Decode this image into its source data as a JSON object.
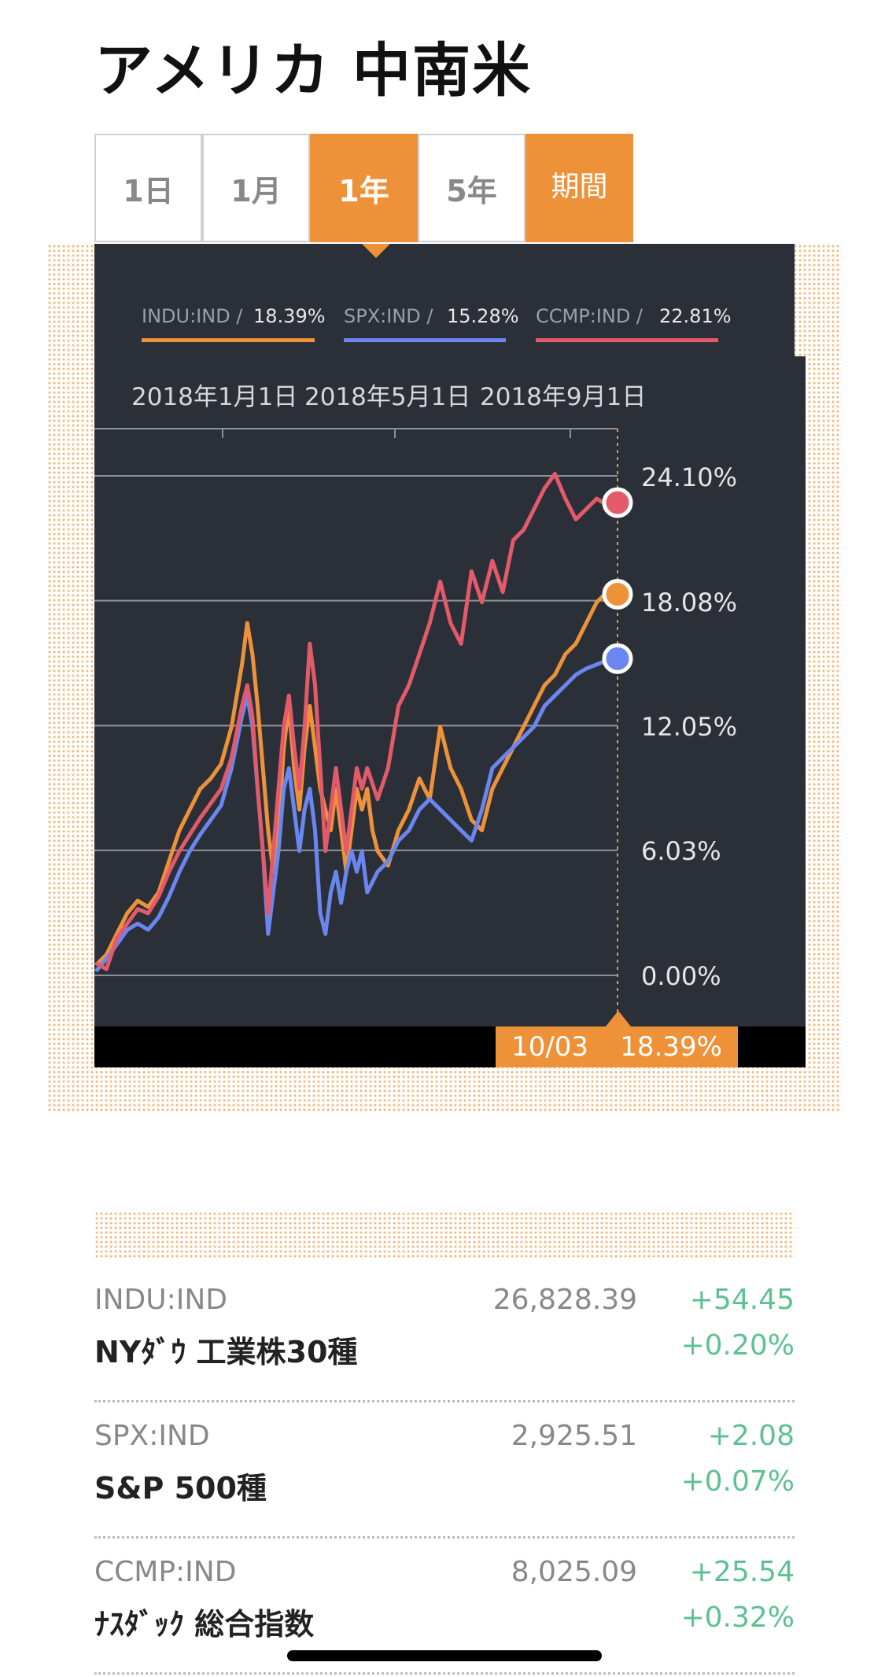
{
  "header": {
    "title": "アメリカ 中南米"
  },
  "tabs": [
    {
      "label": "1日",
      "active": false
    },
    {
      "label": "1月",
      "active": false
    },
    {
      "label": "1年",
      "active": true
    },
    {
      "label": "5年",
      "active": false
    },
    {
      "label": "期間",
      "active": false
    }
  ],
  "legend": [
    {
      "code": "INDU:IND /",
      "value": "18.39%",
      "color": "#ee923a"
    },
    {
      "code": "SPX:IND /",
      "value": "15.28%",
      "color": "#6b86f0"
    },
    {
      "code": "CCMP:IND /",
      "value": "22.81%",
      "color": "#e35a6a"
    }
  ],
  "chart_data": {
    "type": "line",
    "x_tick_labels": [
      "2018年1月1日",
      "2018年5月1日",
      "2018年9月1日"
    ],
    "y_tick_labels": [
      "24.10%",
      "18.08%",
      "12.05%",
      "6.03%",
      "0.00%"
    ],
    "y_ticks": [
      24.1,
      18.08,
      12.05,
      6.03,
      0
    ],
    "ylim": [
      -0.4,
      26.5
    ],
    "x_range": [
      0,
      100
    ],
    "grid": true,
    "series": [
      {
        "name": "INDU:IND",
        "color": "#ee923a",
        "values": [
          [
            0,
            0.5
          ],
          [
            2,
            1
          ],
          [
            4,
            2
          ],
          [
            6,
            3
          ],
          [
            8,
            3.6
          ],
          [
            10,
            3.3
          ],
          [
            12,
            4
          ],
          [
            14,
            5.5
          ],
          [
            16,
            7
          ],
          [
            18,
            8
          ],
          [
            20,
            9
          ],
          [
            22,
            9.5
          ],
          [
            24,
            10.2
          ],
          [
            26,
            12
          ],
          [
            28,
            15
          ],
          [
            29,
            17
          ],
          [
            30,
            15.5
          ],
          [
            31,
            13
          ],
          [
            32,
            10
          ],
          [
            33,
            7
          ],
          [
            34,
            5
          ],
          [
            35,
            7
          ],
          [
            36,
            11
          ],
          [
            37,
            13
          ],
          [
            38,
            10
          ],
          [
            39,
            8
          ],
          [
            40,
            11
          ],
          [
            41,
            13
          ],
          [
            42,
            11
          ],
          [
            43,
            9
          ],
          [
            44,
            8
          ],
          [
            45,
            7
          ],
          [
            46,
            9
          ],
          [
            47,
            7
          ],
          [
            48,
            5
          ],
          [
            49,
            7
          ],
          [
            50,
            9
          ],
          [
            51,
            8
          ],
          [
            52,
            9
          ],
          [
            53,
            7
          ],
          [
            54,
            6
          ],
          [
            56,
            5.3
          ],
          [
            58,
            7
          ],
          [
            60,
            8
          ],
          [
            62,
            9.5
          ],
          [
            64,
            8.5
          ],
          [
            66,
            12
          ],
          [
            68,
            10
          ],
          [
            70,
            9
          ],
          [
            72,
            7.5
          ],
          [
            74,
            7
          ],
          [
            76,
            9
          ],
          [
            78,
            10
          ],
          [
            80,
            11
          ],
          [
            82,
            12
          ],
          [
            84,
            13
          ],
          [
            86,
            14
          ],
          [
            88,
            14.5
          ],
          [
            90,
            15.5
          ],
          [
            92,
            16
          ],
          [
            94,
            17
          ],
          [
            96,
            18
          ],
          [
            98,
            18.5
          ],
          [
            100,
            18.39
          ]
        ]
      },
      {
        "name": "SPX:IND",
        "color": "#6b86f0",
        "values": [
          [
            0,
            0.2
          ],
          [
            2,
            0.8
          ],
          [
            4,
            1.5
          ],
          [
            6,
            2.2
          ],
          [
            8,
            2.5
          ],
          [
            10,
            2.2
          ],
          [
            12,
            2.8
          ],
          [
            14,
            3.8
          ],
          [
            16,
            5
          ],
          [
            18,
            6
          ],
          [
            20,
            6.8
          ],
          [
            22,
            7.5
          ],
          [
            24,
            8.2
          ],
          [
            26,
            10
          ],
          [
            28,
            12.5
          ],
          [
            29,
            13.5
          ],
          [
            30,
            12
          ],
          [
            31,
            9
          ],
          [
            32,
            6
          ],
          [
            33,
            2
          ],
          [
            34,
            4
          ],
          [
            35,
            6
          ],
          [
            36,
            9
          ],
          [
            37,
            10
          ],
          [
            38,
            8
          ],
          [
            39,
            6
          ],
          [
            40,
            8
          ],
          [
            41,
            9
          ],
          [
            42,
            7
          ],
          [
            43,
            3
          ],
          [
            44,
            2
          ],
          [
            45,
            4
          ],
          [
            46,
            5
          ],
          [
            47,
            3.5
          ],
          [
            48,
            5
          ],
          [
            49,
            6
          ],
          [
            50,
            5
          ],
          [
            51,
            6
          ],
          [
            52,
            4
          ],
          [
            54,
            5
          ],
          [
            56,
            5.5
          ],
          [
            58,
            6.5
          ],
          [
            60,
            7
          ],
          [
            62,
            8
          ],
          [
            64,
            8.5
          ],
          [
            66,
            8
          ],
          [
            68,
            7.5
          ],
          [
            70,
            7
          ],
          [
            72,
            6.5
          ],
          [
            74,
            8
          ],
          [
            76,
            10
          ],
          [
            78,
            10.5
          ],
          [
            80,
            11
          ],
          [
            82,
            11.5
          ],
          [
            84,
            12
          ],
          [
            86,
            13
          ],
          [
            88,
            13.5
          ],
          [
            90,
            14
          ],
          [
            92,
            14.5
          ],
          [
            94,
            14.8
          ],
          [
            96,
            15
          ],
          [
            98,
            15.2
          ],
          [
            100,
            15.28
          ]
        ]
      },
      {
        "name": "CCMP:IND",
        "color": "#e35a6a",
        "values": [
          [
            0,
            0.6
          ],
          [
            2,
            0.3
          ],
          [
            4,
            1.8
          ],
          [
            6,
            2.5
          ],
          [
            8,
            3.2
          ],
          [
            10,
            3
          ],
          [
            12,
            3.8
          ],
          [
            14,
            5
          ],
          [
            16,
            6
          ],
          [
            18,
            6.8
          ],
          [
            20,
            7.6
          ],
          [
            22,
            8.3
          ],
          [
            24,
            9
          ],
          [
            26,
            10.5
          ],
          [
            28,
            13
          ],
          [
            29,
            14
          ],
          [
            30,
            12.5
          ],
          [
            31,
            9
          ],
          [
            32,
            6
          ],
          [
            33,
            3
          ],
          [
            34,
            6
          ],
          [
            35,
            9
          ],
          [
            36,
            12
          ],
          [
            37,
            13.5
          ],
          [
            38,
            11
          ],
          [
            39,
            9
          ],
          [
            40,
            12
          ],
          [
            41,
            16
          ],
          [
            42,
            14
          ],
          [
            43,
            10
          ],
          [
            44,
            6
          ],
          [
            45,
            8
          ],
          [
            46,
            10
          ],
          [
            47,
            8
          ],
          [
            48,
            6
          ],
          [
            49,
            8
          ],
          [
            50,
            10
          ],
          [
            51,
            9
          ],
          [
            52,
            10
          ],
          [
            54,
            8.5
          ],
          [
            56,
            10
          ],
          [
            58,
            13
          ],
          [
            60,
            14
          ],
          [
            62,
            15.5
          ],
          [
            64,
            17
          ],
          [
            66,
            19
          ],
          [
            68,
            17
          ],
          [
            70,
            16
          ],
          [
            72,
            19.5
          ],
          [
            74,
            18
          ],
          [
            76,
            20
          ],
          [
            78,
            18.5
          ],
          [
            80,
            21
          ],
          [
            82,
            21.5
          ],
          [
            84,
            22.5
          ],
          [
            86,
            23.5
          ],
          [
            88,
            24.2
          ],
          [
            90,
            23
          ],
          [
            92,
            22
          ],
          [
            94,
            22.5
          ],
          [
            96,
            23
          ],
          [
            98,
            22.7
          ],
          [
            100,
            22.81
          ]
        ]
      }
    ],
    "end_marker": {
      "date": "10/03",
      "value": "18.39%"
    }
  },
  "list": [
    {
      "code": "INDU:IND",
      "name": "NYﾀﾞｳ 工業株30種",
      "price": "26,828.39",
      "change": "+54.45",
      "percent": "+0.20%"
    },
    {
      "code": "SPX:IND",
      "name": "S&P 500種",
      "price": "2,925.51",
      "change": "+2.08",
      "percent": "+0.07%"
    },
    {
      "code": "CCMP:IND",
      "name": "ﾅｽﾀﾞｯｸ 総合指数",
      "price": "8,025.09",
      "change": "+25.54",
      "percent": "+0.32%"
    }
  ]
}
